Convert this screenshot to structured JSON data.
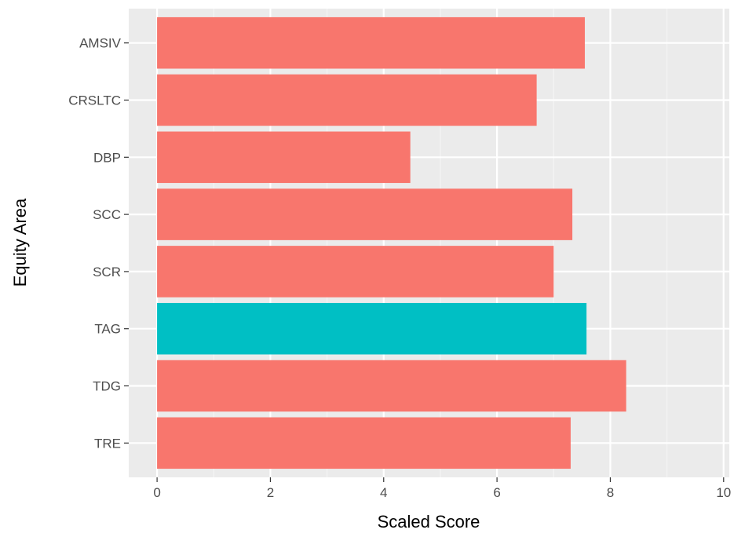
{
  "chart_data": {
    "type": "bar",
    "orientation": "horizontal",
    "categories": [
      "AMSIV",
      "CRSLTC",
      "DBP",
      "SCC",
      "SCR",
      "TAG",
      "TDG",
      "TRE"
    ],
    "values": [
      7.55,
      6.7,
      4.47,
      7.33,
      7.0,
      7.58,
      8.28,
      7.3
    ],
    "highlight": [
      "TAG"
    ],
    "xlabel": "Scaled Score",
    "ylabel": "Equity Area",
    "xlim": [
      -0.5,
      10.1
    ],
    "xticks": [
      0,
      2,
      4,
      6,
      8,
      10
    ],
    "grid": true,
    "legend": "none",
    "colors": {
      "bar": "#F8766D",
      "highlight": "#00BFC4",
      "panel": "#EBEBEB",
      "grid_major": "#FFFFFF",
      "grid_minor": "#F5F5F5"
    }
  }
}
